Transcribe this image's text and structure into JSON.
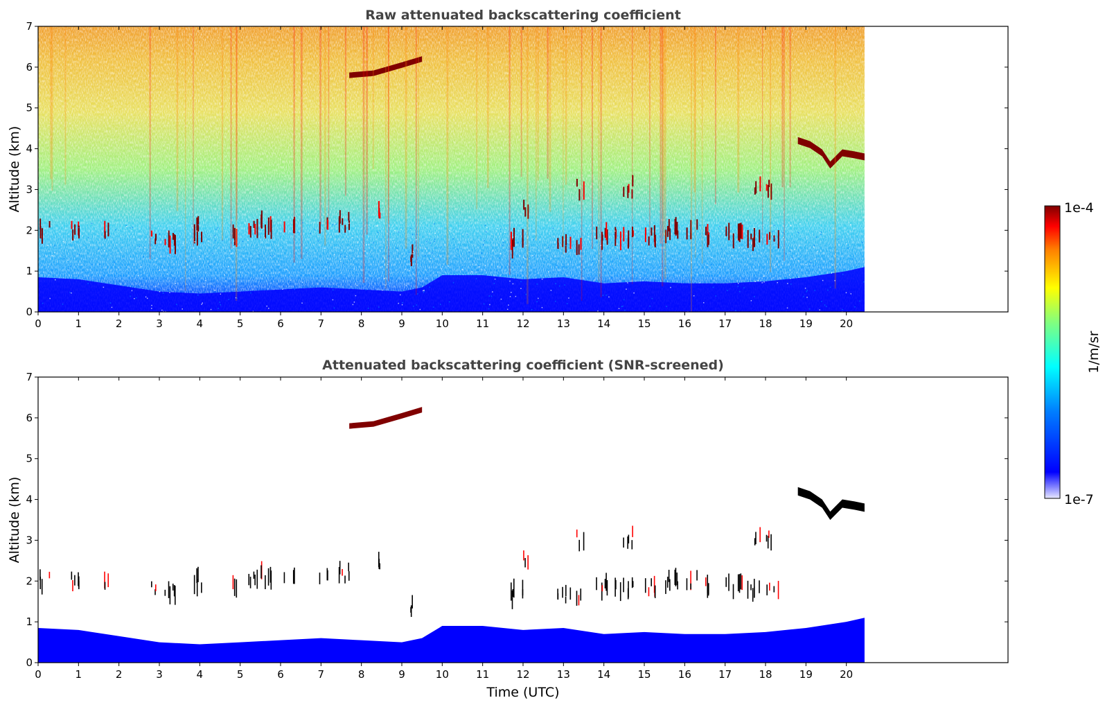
{
  "colormap": [
    "#00008f",
    "#0000ff",
    "#0080ff",
    "#00ffff",
    "#80ff80",
    "#ffff00",
    "#ff8000",
    "#ff0000",
    "#800000"
  ],
  "chart_data": [
    {
      "type": "heatmap",
      "title": "Raw attenuated backscattering coefficient",
      "xlabel": "",
      "ylabel": "Altitude (km)",
      "xlim": [
        0,
        24
      ],
      "ylim": [
        0,
        7
      ],
      "x_ticks": [
        "0",
        "1",
        "2",
        "3",
        "4",
        "5",
        "6",
        "7",
        "8",
        "9",
        "10",
        "11",
        "12",
        "13",
        "14",
        "15",
        "16",
        "17",
        "18",
        "19",
        "20"
      ],
      "y_ticks": [
        "0",
        "1",
        "2",
        "3",
        "4",
        "5",
        "6",
        "7"
      ],
      "data_end_time": 20.45,
      "features": {
        "elevated_layer": [
          [
            7.7,
            5.8
          ],
          [
            8.3,
            5.85
          ],
          [
            9.0,
            6.05
          ],
          [
            9.5,
            6.2
          ]
        ],
        "low_clouds": [
          {
            "t0": 0.0,
            "t1": 0.3,
            "alt": 2.0
          },
          {
            "t0": 0.8,
            "t1": 1.3,
            "alt": 2.0
          },
          {
            "t0": 1.6,
            "t1": 1.75,
            "alt": 1.95
          },
          {
            "t0": 2.7,
            "t1": 3.5,
            "alt": 1.75
          },
          {
            "t0": 3.8,
            "t1": 4.2,
            "alt": 2.0
          },
          {
            "t0": 4.8,
            "t1": 4.95,
            "alt": 1.85
          },
          {
            "t0": 5.2,
            "t1": 6.4,
            "alt": 2.1
          },
          {
            "t0": 6.9,
            "t1": 7.2,
            "alt": 2.0
          },
          {
            "t0": 7.4,
            "t1": 7.9,
            "alt": 2.2
          },
          {
            "t0": 8.4,
            "t1": 8.45,
            "alt": 2.4
          },
          {
            "t0": 9.2,
            "t1": 9.25,
            "alt": 1.4
          },
          {
            "t0": 11.5,
            "t1": 12.0,
            "alt": 1.7
          },
          {
            "t0": 12.0,
            "t1": 12.2,
            "alt": 2.6
          },
          {
            "t0": 12.8,
            "t1": 13.6,
            "alt": 1.7
          },
          {
            "t0": 13.6,
            "t1": 15.3,
            "alt": 1.85
          },
          {
            "t0": 15.5,
            "t1": 16.5,
            "alt": 2.0
          },
          {
            "t0": 16.5,
            "t1": 17.6,
            "alt": 1.9
          },
          {
            "t0": 17.6,
            "t1": 18.4,
            "alt": 1.75
          },
          {
            "t0": 17.6,
            "t1": 18.2,
            "alt": 3.0
          },
          {
            "t0": 14.4,
            "t1": 14.8,
            "alt": 3.05
          },
          {
            "t0": 13.3,
            "t1": 13.5,
            "alt": 3.0
          }
        ],
        "high_clouds": [
          [
            18.8,
            4.2
          ],
          [
            19.1,
            4.1
          ],
          [
            19.4,
            3.9
          ],
          [
            19.6,
            3.6
          ],
          [
            19.9,
            3.9
          ],
          [
            20.2,
            3.85
          ],
          [
            20.45,
            3.8
          ]
        ],
        "boundary_layer_top": [
          [
            0,
            0.85
          ],
          [
            1,
            0.8
          ],
          [
            2,
            0.65
          ],
          [
            3,
            0.5
          ],
          [
            4,
            0.45
          ],
          [
            5,
            0.5
          ],
          [
            6,
            0.55
          ],
          [
            7,
            0.6
          ],
          [
            8,
            0.55
          ],
          [
            9,
            0.5
          ],
          [
            9.5,
            0.6
          ],
          [
            10,
            0.9
          ],
          [
            11,
            0.9
          ],
          [
            12,
            0.8
          ],
          [
            13,
            0.85
          ],
          [
            14,
            0.7
          ],
          [
            15,
            0.75
          ],
          [
            16,
            0.7
          ],
          [
            17,
            0.7
          ],
          [
            18,
            0.75
          ],
          [
            19,
            0.85
          ],
          [
            20,
            1.0
          ],
          [
            20.45,
            1.1
          ]
        ]
      }
    },
    {
      "type": "heatmap",
      "title": "Attenuated backscattering coefficient (SNR-screened)",
      "xlabel": "Time (UTC)",
      "ylabel": "Altitude (km)",
      "xlim": [
        0,
        24
      ],
      "ylim": [
        0,
        7
      ],
      "x_ticks": [
        "0",
        "1",
        "2",
        "3",
        "4",
        "5",
        "6",
        "7",
        "8",
        "9",
        "10",
        "11",
        "12",
        "13",
        "14",
        "15",
        "16",
        "17",
        "18",
        "19",
        "20"
      ],
      "y_ticks": [
        "0",
        "1",
        "2",
        "3",
        "4",
        "5",
        "6",
        "7"
      ],
      "data_end_time": 20.45
    }
  ],
  "colorbar": {
    "label": "1/m/sr",
    "max_label": "1e-4",
    "min_label": "1e-7"
  }
}
